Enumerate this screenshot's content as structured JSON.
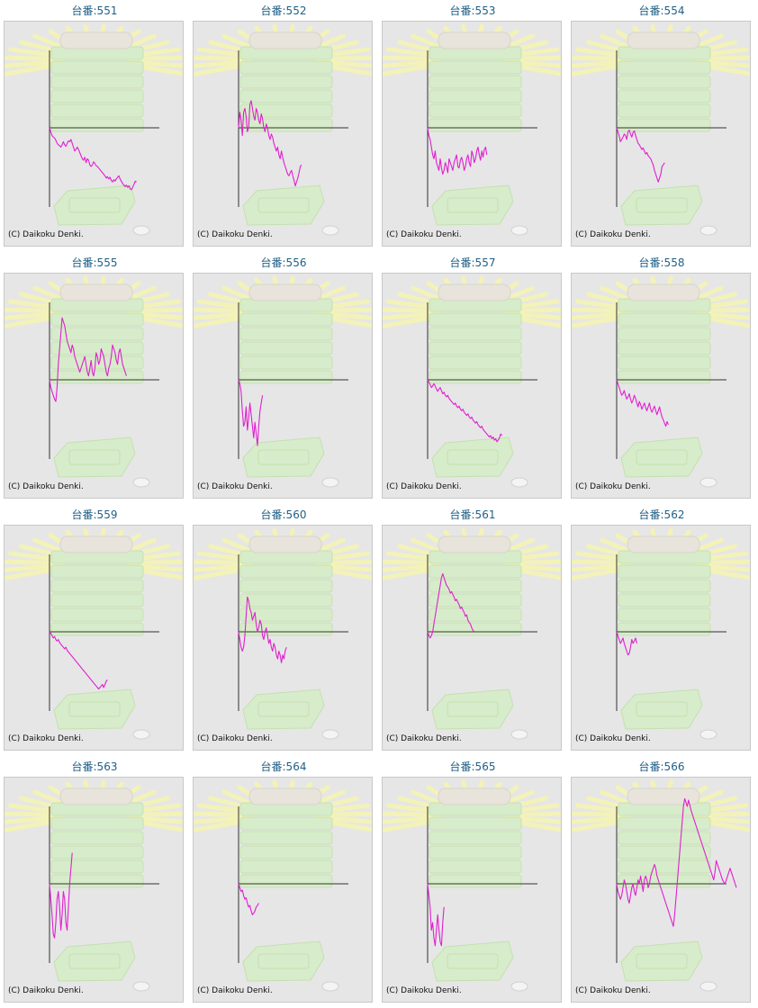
{
  "colors": {
    "title": "#1f5f86",
    "line": "#e020d0",
    "axis": "#333333",
    "panel": "#e6e6e6"
  },
  "copyright": "(C) Daikoku Denki.",
  "chart_data": [
    {
      "type": "line",
      "title": "台番:551",
      "y": [
        0,
        -5,
        -10,
        -12,
        -13,
        -16,
        -20,
        -22,
        -23,
        -25,
        -22,
        -18,
        -22,
        -24,
        -20,
        -17,
        -18,
        -15,
        -20,
        -25,
        -30,
        -28,
        -25,
        -28,
        -32,
        -36,
        -40,
        -42,
        -38,
        -45,
        -40,
        -42,
        -48,
        -50,
        -48,
        -44,
        -46,
        -49,
        -50,
        -52,
        -54,
        -56,
        -58,
        -60,
        -62,
        -65,
        -63,
        -66,
        -64,
        -68,
        -70,
        -67,
        -69,
        -66,
        -64,
        -62,
        -66,
        -69,
        -72,
        -74,
        -76,
        -74,
        -77,
        -75,
        -79,
        -80,
        -77,
        -73,
        -69,
        -70
      ]
    },
    {
      "type": "line",
      "title": "台番:552",
      "y": [
        0,
        20,
        10,
        -10,
        20,
        25,
        15,
        -5,
        0,
        30,
        35,
        25,
        15,
        10,
        25,
        20,
        10,
        5,
        18,
        12,
        0,
        -5,
        5,
        0,
        -10,
        -15,
        -8,
        -12,
        -20,
        -25,
        -30,
        -25,
        -35,
        -40,
        -30,
        -38,
        -45,
        -50,
        -55,
        -60,
        -62,
        -58,
        -55,
        -62,
        -68,
        -75,
        -70,
        -65,
        -58,
        -50,
        -48
      ]
    },
    {
      "type": "line",
      "title": "台番:553",
      "y": [
        0,
        -10,
        -15,
        -25,
        -35,
        -40,
        -30,
        -45,
        -50,
        -55,
        -40,
        -52,
        -60,
        -55,
        -45,
        -50,
        -58,
        -40,
        -45,
        -50,
        -55,
        -45,
        -40,
        -35,
        -50,
        -52,
        -42,
        -38,
        -45,
        -55,
        -50,
        -40,
        -35,
        -45,
        -50,
        -30,
        -35,
        -45,
        -40,
        -30,
        -25,
        -35,
        -42,
        -30,
        -38,
        -28,
        -25,
        -35
      ]
    },
    {
      "type": "line",
      "title": "台番:554",
      "y": [
        0,
        -5,
        -10,
        -18,
        -15,
        -12,
        -8,
        -10,
        -15,
        -5,
        -3,
        -8,
        -12,
        -6,
        -4,
        -10,
        -15,
        -20,
        -22,
        -25,
        -28,
        -26,
        -30,
        -34,
        -32,
        -36,
        -38,
        -40,
        -44,
        -48,
        -55,
        -60,
        -65,
        -70,
        -65,
        -60,
        -50,
        -48,
        -45
      ]
    },
    {
      "type": "line",
      "title": "台番:555",
      "y": [
        0,
        -10,
        -15,
        -20,
        -25,
        -28,
        -10,
        20,
        40,
        60,
        80,
        75,
        70,
        60,
        50,
        45,
        40,
        35,
        45,
        40,
        30,
        25,
        20,
        15,
        10,
        15,
        20,
        25,
        30,
        20,
        10,
        5,
        15,
        25,
        10,
        5,
        15,
        35,
        30,
        20,
        25,
        40,
        35,
        30,
        20,
        10,
        5,
        15,
        20,
        30,
        45,
        40,
        35,
        25,
        20,
        35,
        40,
        30,
        20,
        15,
        10,
        5
      ]
    },
    {
      "type": "line",
      "title": "台番:556",
      "y": [
        0,
        -5,
        -15,
        -40,
        -60,
        -55,
        -35,
        -65,
        -50,
        -30,
        -45,
        -60,
        -75,
        -55,
        -70,
        -85,
        -60,
        -40,
        -30,
        -20
      ]
    },
    {
      "type": "line",
      "title": "台番:557",
      "y": [
        0,
        -3,
        -6,
        -10,
        -8,
        -5,
        -8,
        -12,
        -15,
        -12,
        -10,
        -14,
        -18,
        -16,
        -20,
        -22,
        -20,
        -24,
        -26,
        -28,
        -30,
        -32,
        -30,
        -34,
        -36,
        -34,
        -38,
        -40,
        -38,
        -42,
        -44,
        -46,
        -44,
        -48,
        -50,
        -48,
        -52,
        -54,
        -56,
        -54,
        -58,
        -60,
        -62,
        -60,
        -64,
        -66,
        -68,
        -70,
        -72,
        -74,
        -72,
        -76,
        -74,
        -78,
        -76,
        -80,
        -78,
        -75,
        -70,
        -72
      ]
    },
    {
      "type": "line",
      "title": "台番:558",
      "y": [
        0,
        -5,
        -10,
        -15,
        -20,
        -18,
        -14,
        -20,
        -25,
        -22,
        -18,
        -25,
        -30,
        -26,
        -20,
        -24,
        -30,
        -35,
        -28,
        -32,
        -38,
        -34,
        -30,
        -36,
        -40,
        -35,
        -30,
        -38,
        -42,
        -38,
        -34,
        -40,
        -45,
        -40,
        -35,
        -42,
        -48,
        -52,
        -56,
        -60,
        -54,
        -58
      ]
    },
    {
      "type": "line",
      "title": "台番:559",
      "y": [
        0,
        -2,
        -5,
        -8,
        -6,
        -10,
        -12,
        -10,
        -14,
        -16,
        -18,
        -20,
        -22,
        -20,
        -24,
        -26,
        -28,
        -30,
        -32,
        -34,
        -36,
        -38,
        -40,
        -42,
        -44,
        -46,
        -48,
        -50,
        -52,
        -54,
        -56,
        -58,
        -60,
        -62,
        -64,
        -66,
        -68,
        -70,
        -72,
        -74,
        -72,
        -70,
        -68,
        -72,
        -68,
        -64,
        -62
      ]
    },
    {
      "type": "line",
      "title": "台番:560",
      "y": [
        0,
        -10,
        -20,
        -25,
        -20,
        -5,
        20,
        45,
        40,
        30,
        25,
        15,
        20,
        25,
        10,
        0,
        5,
        15,
        10,
        -5,
        -10,
        0,
        5,
        -5,
        -15,
        -10,
        -20,
        -25,
        -15,
        -20,
        -30,
        -35,
        -25,
        -30,
        -40,
        -30,
        -35,
        -25,
        -20
      ]
    },
    {
      "type": "line",
      "title": "台番:561",
      "y": [
        0,
        -5,
        -8,
        -5,
        0,
        10,
        20,
        30,
        40,
        50,
        60,
        70,
        75,
        70,
        65,
        60,
        58,
        55,
        50,
        52,
        48,
        45,
        40,
        42,
        38,
        35,
        30,
        32,
        28,
        25,
        20,
        22,
        15,
        12,
        10,
        5,
        2,
        0
      ]
    },
    {
      "type": "line",
      "title": "台番:562",
      "y": [
        0,
        -5,
        -10,
        -15,
        -12,
        -8,
        -15,
        -20,
        -25,
        -30,
        -28,
        -20,
        -10,
        -15,
        -12,
        -8,
        -15
      ]
    },
    {
      "type": "line",
      "title": "台番:563",
      "y": [
        0,
        -20,
        -40,
        -65,
        -70,
        -50,
        -20,
        -10,
        -30,
        -60,
        -40,
        -10,
        -20,
        -50,
        -60,
        -30,
        0,
        20,
        40
      ]
    },
    {
      "type": "line",
      "title": "台番:564",
      "y": [
        0,
        -5,
        -10,
        -8,
        -15,
        -20,
        -18,
        -25,
        -30,
        -28,
        -35,
        -40,
        -38,
        -35,
        -30,
        -28,
        -25
      ]
    },
    {
      "type": "line",
      "title": "台番:565",
      "y": [
        0,
        -15,
        -30,
        -60,
        -50,
        -70,
        -80,
        -60,
        -40,
        -60,
        -75,
        -80,
        -50,
        -30
      ]
    },
    {
      "type": "line",
      "title": "台番:566",
      "y": [
        0,
        -10,
        -15,
        -20,
        -15,
        -5,
        5,
        0,
        -10,
        -20,
        -25,
        -15,
        -5,
        0,
        -10,
        -15,
        -5,
        5,
        0,
        10,
        0,
        -10,
        5,
        10,
        5,
        -5,
        0,
        10,
        15,
        20,
        25,
        20,
        10,
        5,
        0,
        -5,
        -10,
        -15,
        -20,
        -25,
        -30,
        -35,
        -40,
        -45,
        -50,
        -55,
        -40,
        -20,
        0,
        20,
        40,
        60,
        80,
        100,
        110,
        105,
        100,
        108,
        102,
        95,
        90,
        85,
        80,
        75,
        70,
        65,
        60,
        55,
        50,
        45,
        40,
        35,
        30,
        25,
        20,
        15,
        10,
        5,
        15,
        30,
        25,
        20,
        15,
        10,
        5,
        2,
        0,
        5,
        10,
        15,
        20,
        15,
        10,
        5,
        0,
        -5
      ]
    }
  ]
}
